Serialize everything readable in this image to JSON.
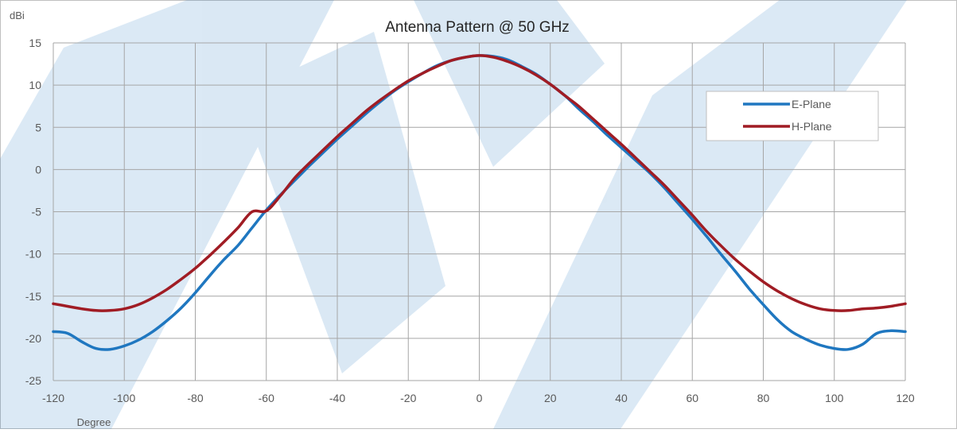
{
  "chart_data": {
    "type": "line",
    "title": "Antenna Pattern @ 50 GHz",
    "xlabel": "Degree",
    "ylabel": "dBi",
    "xlim": [
      -120,
      120
    ],
    "ylim": [
      -25,
      15
    ],
    "x_ticks": [
      -120,
      -100,
      -80,
      -60,
      -40,
      -20,
      0,
      20,
      40,
      60,
      80,
      100,
      120
    ],
    "y_ticks": [
      15,
      10,
      5,
      0,
      -5,
      -10,
      -15,
      -20,
      -25
    ],
    "grid": true,
    "legend_position": "top-right",
    "series": [
      {
        "name": "E-Plane",
        "color": "#1f77c0",
        "x": [
          -120,
          -116,
          -112,
          -108,
          -104,
          -100,
          -96,
          -92,
          -88,
          -84,
          -80,
          -76,
          -72,
          -68,
          -64,
          -60,
          -56,
          -52,
          -48,
          -44,
          -40,
          -36,
          -32,
          -28,
          -24,
          -20,
          -16,
          -12,
          -8,
          -4,
          0,
          4,
          8,
          12,
          16,
          20,
          24,
          28,
          32,
          36,
          40,
          44,
          48,
          52,
          56,
          60,
          64,
          68,
          72,
          76,
          80,
          84,
          88,
          92,
          96,
          100,
          104,
          108,
          112,
          116,
          120
        ],
        "values": [
          -19.2,
          -19.4,
          -20.4,
          -21.2,
          -21.3,
          -20.9,
          -20.2,
          -19.2,
          -17.9,
          -16.4,
          -14.6,
          -12.6,
          -10.7,
          -9.0,
          -6.9,
          -4.8,
          -3.0,
          -1.3,
          0.4,
          2.0,
          3.6,
          5.1,
          6.6,
          8.0,
          9.3,
          10.4,
          11.4,
          12.3,
          12.9,
          13.3,
          13.5,
          13.4,
          13.0,
          12.2,
          11.3,
          10.1,
          8.8,
          7.2,
          5.7,
          4.1,
          2.6,
          1.1,
          -0.4,
          -2.1,
          -4.0,
          -5.9,
          -7.9,
          -10.0,
          -12.0,
          -14.1,
          -16.0,
          -17.8,
          -19.2,
          -20.1,
          -20.8,
          -21.2,
          -21.3,
          -20.7,
          -19.4,
          -19.1,
          -19.2
        ]
      },
      {
        "name": "H-Plane",
        "color": "#a01c24",
        "x": [
          -120,
          -116,
          -112,
          -108,
          -104,
          -100,
          -96,
          -92,
          -88,
          -84,
          -80,
          -76,
          -72,
          -68,
          -64,
          -60,
          -56,
          -52,
          -48,
          -44,
          -40,
          -36,
          -32,
          -28,
          -24,
          -20,
          -16,
          -12,
          -8,
          -4,
          0,
          4,
          8,
          12,
          16,
          20,
          24,
          28,
          32,
          36,
          40,
          44,
          48,
          52,
          56,
          60,
          64,
          68,
          72,
          76,
          80,
          84,
          88,
          92,
          96,
          100,
          104,
          108,
          112,
          116,
          120
        ],
        "values": [
          -15.9,
          -16.2,
          -16.5,
          -16.7,
          -16.7,
          -16.5,
          -16.0,
          -15.2,
          -14.2,
          -13.0,
          -11.7,
          -10.2,
          -8.6,
          -6.9,
          -5.0,
          -4.9,
          -3.1,
          -1.0,
          0.7,
          2.3,
          3.9,
          5.4,
          6.9,
          8.2,
          9.4,
          10.5,
          11.4,
          12.2,
          12.9,
          13.3,
          13.5,
          13.3,
          12.8,
          12.1,
          11.2,
          10.1,
          8.8,
          7.5,
          6.0,
          4.5,
          3.0,
          1.4,
          -0.2,
          -1.8,
          -3.6,
          -5.4,
          -7.3,
          -9.0,
          -10.6,
          -12.0,
          -13.3,
          -14.4,
          -15.3,
          -16.0,
          -16.5,
          -16.7,
          -16.7,
          -16.5,
          -16.4,
          -16.2,
          -15.9
        ]
      }
    ]
  }
}
